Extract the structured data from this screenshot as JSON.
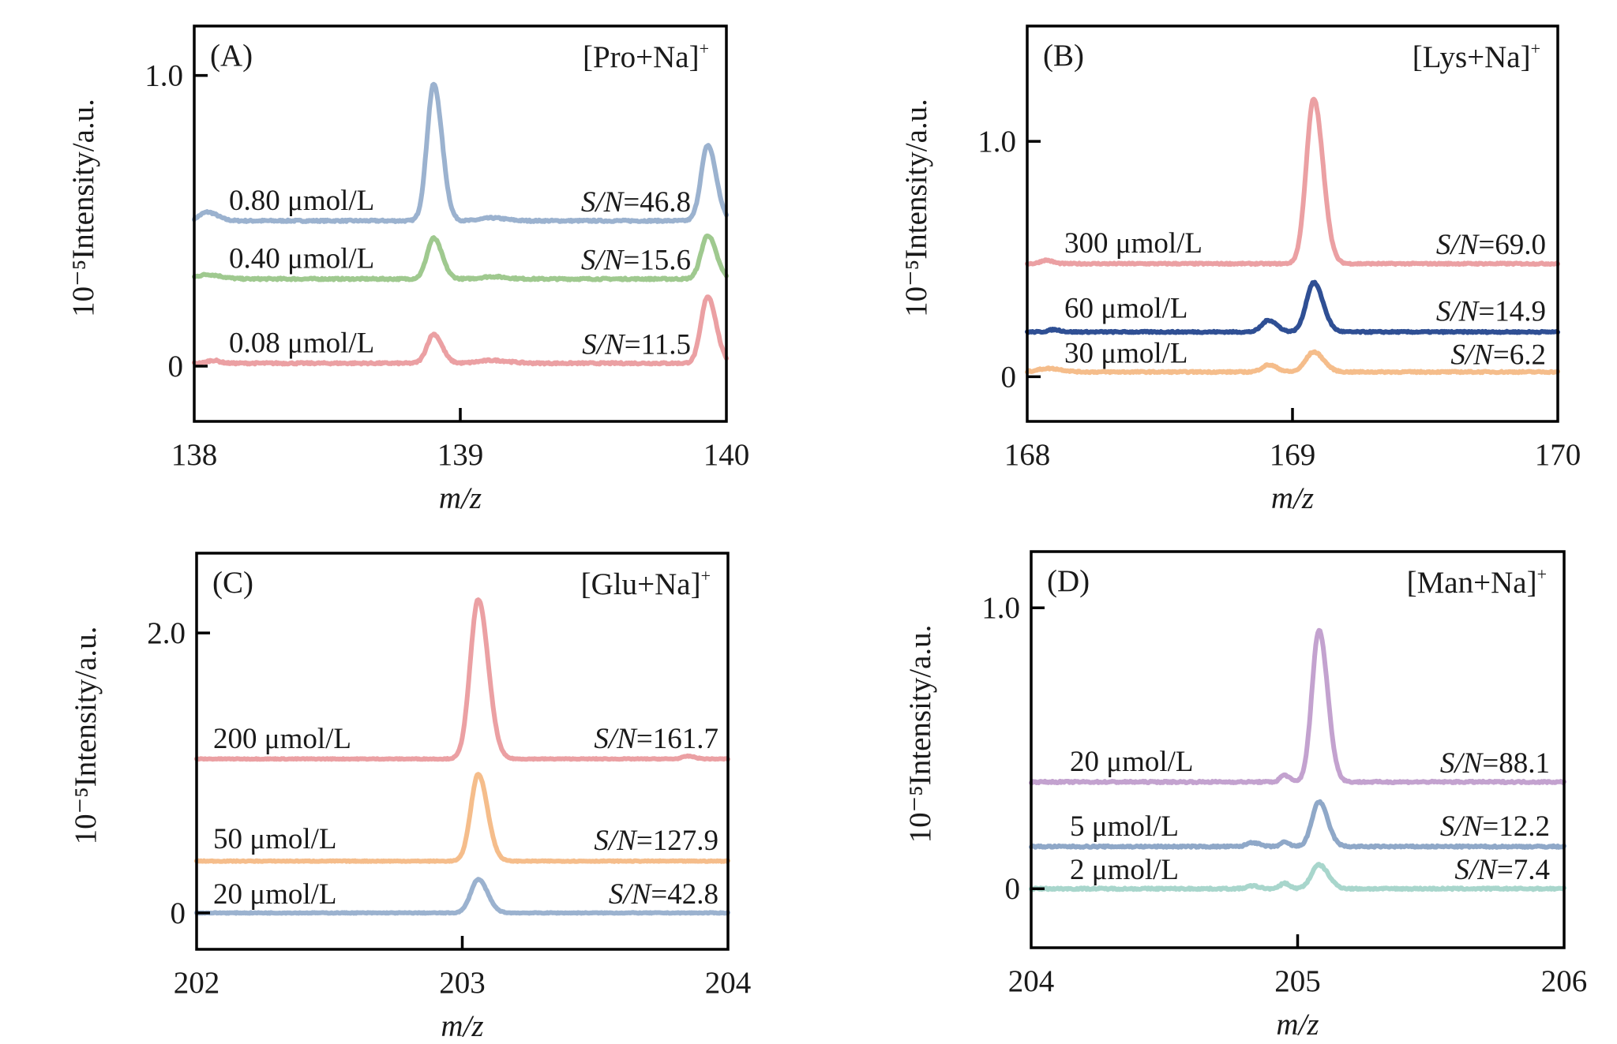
{
  "chart_data": [
    {
      "type": "line",
      "panel": "(A)",
      "ion": "[Pro+Na]",
      "ion_charge": "+",
      "xlabel": "m/z",
      "ylabel": "10⁻⁵Intensity/a.u.",
      "xlim": [
        138,
        140
      ],
      "ylim": [
        -0.19,
        1.17
      ],
      "xticks": [
        138,
        139,
        140
      ],
      "xtick_labels": [
        "138",
        "139",
        "140"
      ],
      "yticks": [
        0,
        1.0
      ],
      "ytick_labels": [
        "0",
        "1.0"
      ],
      "series": [
        {
          "name": "0.80 μmol/L",
          "sn": "46.8",
          "color": "#9bb2cf",
          "baseline": 0.5,
          "peaks": [
            {
              "x": 138.05,
              "h": 0.03,
              "w": 0.03
            },
            {
              "x": 138.9,
              "h": 0.47,
              "w": 0.025
            },
            {
              "x": 139.12,
              "h": 0.01,
              "w": 0.04
            },
            {
              "x": 139.93,
              "h": 0.26,
              "w": 0.025
            }
          ]
        },
        {
          "name": "0.40 μmol/L",
          "sn": "15.6",
          "color": "#9fc98f",
          "baseline": 0.3,
          "peaks": [
            {
              "x": 138.05,
              "h": 0.015,
              "w": 0.04
            },
            {
              "x": 138.9,
              "h": 0.14,
              "w": 0.025
            },
            {
              "x": 139.12,
              "h": 0.008,
              "w": 0.04
            },
            {
              "x": 139.93,
              "h": 0.15,
              "w": 0.025
            }
          ]
        },
        {
          "name": "0.08 μmol/L",
          "sn": "11.5",
          "color": "#eba0a3",
          "baseline": 0.01,
          "peaks": [
            {
              "x": 138.07,
              "h": 0.01,
              "w": 0.02
            },
            {
              "x": 138.9,
              "h": 0.1,
              "w": 0.025
            },
            {
              "x": 139.12,
              "h": 0.01,
              "w": 0.05
            },
            {
              "x": 139.93,
              "h": 0.23,
              "w": 0.025
            }
          ]
        }
      ]
    },
    {
      "type": "line",
      "panel": "(B)",
      "ion": "[Lys+Na]",
      "ion_charge": "+",
      "xlabel": "m/z",
      "ylabel": "10⁻⁵Intensity/a.u.",
      "xlim": [
        168,
        170
      ],
      "ylim": [
        -0.19,
        1.49
      ],
      "xticks": [
        168,
        169,
        170
      ],
      "xtick_labels": [
        "168",
        "169",
        "170"
      ],
      "yticks": [
        0,
        1.0
      ],
      "ytick_labels": [
        "0",
        "1.0"
      ],
      "series": [
        {
          "name": "300 μmol/L",
          "sn": "69.0",
          "color": "#eba0a3",
          "baseline": 0.48,
          "peaks": [
            {
              "x": 168.07,
              "h": 0.015,
              "w": 0.02
            },
            {
              "x": 169.08,
              "h": 0.7,
              "w": 0.028
            }
          ]
        },
        {
          "name": "60 μmol/L",
          "sn": "14.9",
          "color": "#2f4f94",
          "baseline": 0.19,
          "peaks": [
            {
              "x": 168.1,
              "h": 0.01,
              "w": 0.02
            },
            {
              "x": 168.91,
              "h": 0.05,
              "w": 0.025
            },
            {
              "x": 169.08,
              "h": 0.21,
              "w": 0.028
            }
          ]
        },
        {
          "name": "30 μmol/L",
          "sn": "6.2",
          "color": "#f5bd8b",
          "baseline": 0.02,
          "peaks": [
            {
              "x": 168.08,
              "h": 0.015,
              "w": 0.04
            },
            {
              "x": 168.91,
              "h": 0.03,
              "w": 0.025
            },
            {
              "x": 169.08,
              "h": 0.085,
              "w": 0.03
            }
          ]
        }
      ]
    },
    {
      "type": "line",
      "panel": "(C)",
      "ion": "[Glu+Na]",
      "ion_charge": "+",
      "xlabel": "m/z",
      "ylabel": "10⁻⁵Intensity/a.u.",
      "xlim": [
        202,
        204
      ],
      "ylim": [
        -0.26,
        2.57
      ],
      "xticks": [
        202,
        203,
        204
      ],
      "xtick_labels": [
        "202",
        "203",
        "204"
      ],
      "yticks": [
        0,
        2.0
      ],
      "ytick_labels": [
        "0",
        "2.0"
      ],
      "series": [
        {
          "name": "200 μmol/L",
          "sn": "161.7",
          "color": "#eba0a3",
          "baseline": 1.1,
          "peaks": [
            {
              "x": 203.06,
              "h": 1.14,
              "w": 0.03
            },
            {
              "x": 203.85,
              "h": 0.02,
              "w": 0.02
            }
          ]
        },
        {
          "name": "50 μmol/L",
          "sn": "127.9",
          "color": "#f5bd8b",
          "baseline": 0.37,
          "peaks": [
            {
              "x": 203.06,
              "h": 0.62,
              "w": 0.028
            }
          ]
        },
        {
          "name": "20 μmol/L",
          "sn": "42.8",
          "color": "#9bb2cf",
          "baseline": 0.0,
          "peaks": [
            {
              "x": 203.06,
              "h": 0.24,
              "w": 0.028
            }
          ]
        }
      ]
    },
    {
      "type": "line",
      "panel": "(D)",
      "ion": "[Man+Na]",
      "ion_charge": "+",
      "xlabel": "m/z",
      "ylabel": "10⁻⁵Intensity/a.u.",
      "xlim": [
        204,
        206
      ],
      "ylim": [
        -0.21,
        1.2
      ],
      "xticks": [
        204,
        205,
        206
      ],
      "xtick_labels": [
        "204",
        "205",
        "206"
      ],
      "yticks": [
        0,
        1.0
      ],
      "ytick_labels": [
        "0",
        "1.0"
      ],
      "series": [
        {
          "name": "20 μmol/L",
          "sn": "88.1",
          "color": "#c3a2cf",
          "baseline": 0.38,
          "peaks": [
            {
              "x": 204.95,
              "h": 0.025,
              "w": 0.015
            },
            {
              "x": 205.08,
              "h": 0.54,
              "w": 0.026
            }
          ]
        },
        {
          "name": "5 μmol/L",
          "sn": "12.2",
          "color": "#8fa8c8",
          "baseline": 0.15,
          "peaks": [
            {
              "x": 204.83,
              "h": 0.015,
              "w": 0.02
            },
            {
              "x": 204.95,
              "h": 0.015,
              "w": 0.015
            },
            {
              "x": 205.08,
              "h": 0.16,
              "w": 0.026
            }
          ]
        },
        {
          "name": "2 μmol/L",
          "sn": "7.4",
          "color": "#a8d6cc",
          "baseline": 0.0,
          "peaks": [
            {
              "x": 204.83,
              "h": 0.01,
              "w": 0.02
            },
            {
              "x": 204.95,
              "h": 0.02,
              "w": 0.015
            },
            {
              "x": 205.08,
              "h": 0.085,
              "w": 0.028
            }
          ]
        }
      ]
    }
  ],
  "labels": {
    "sn_prefix_italic": "S/N",
    "sn_equals": "="
  }
}
